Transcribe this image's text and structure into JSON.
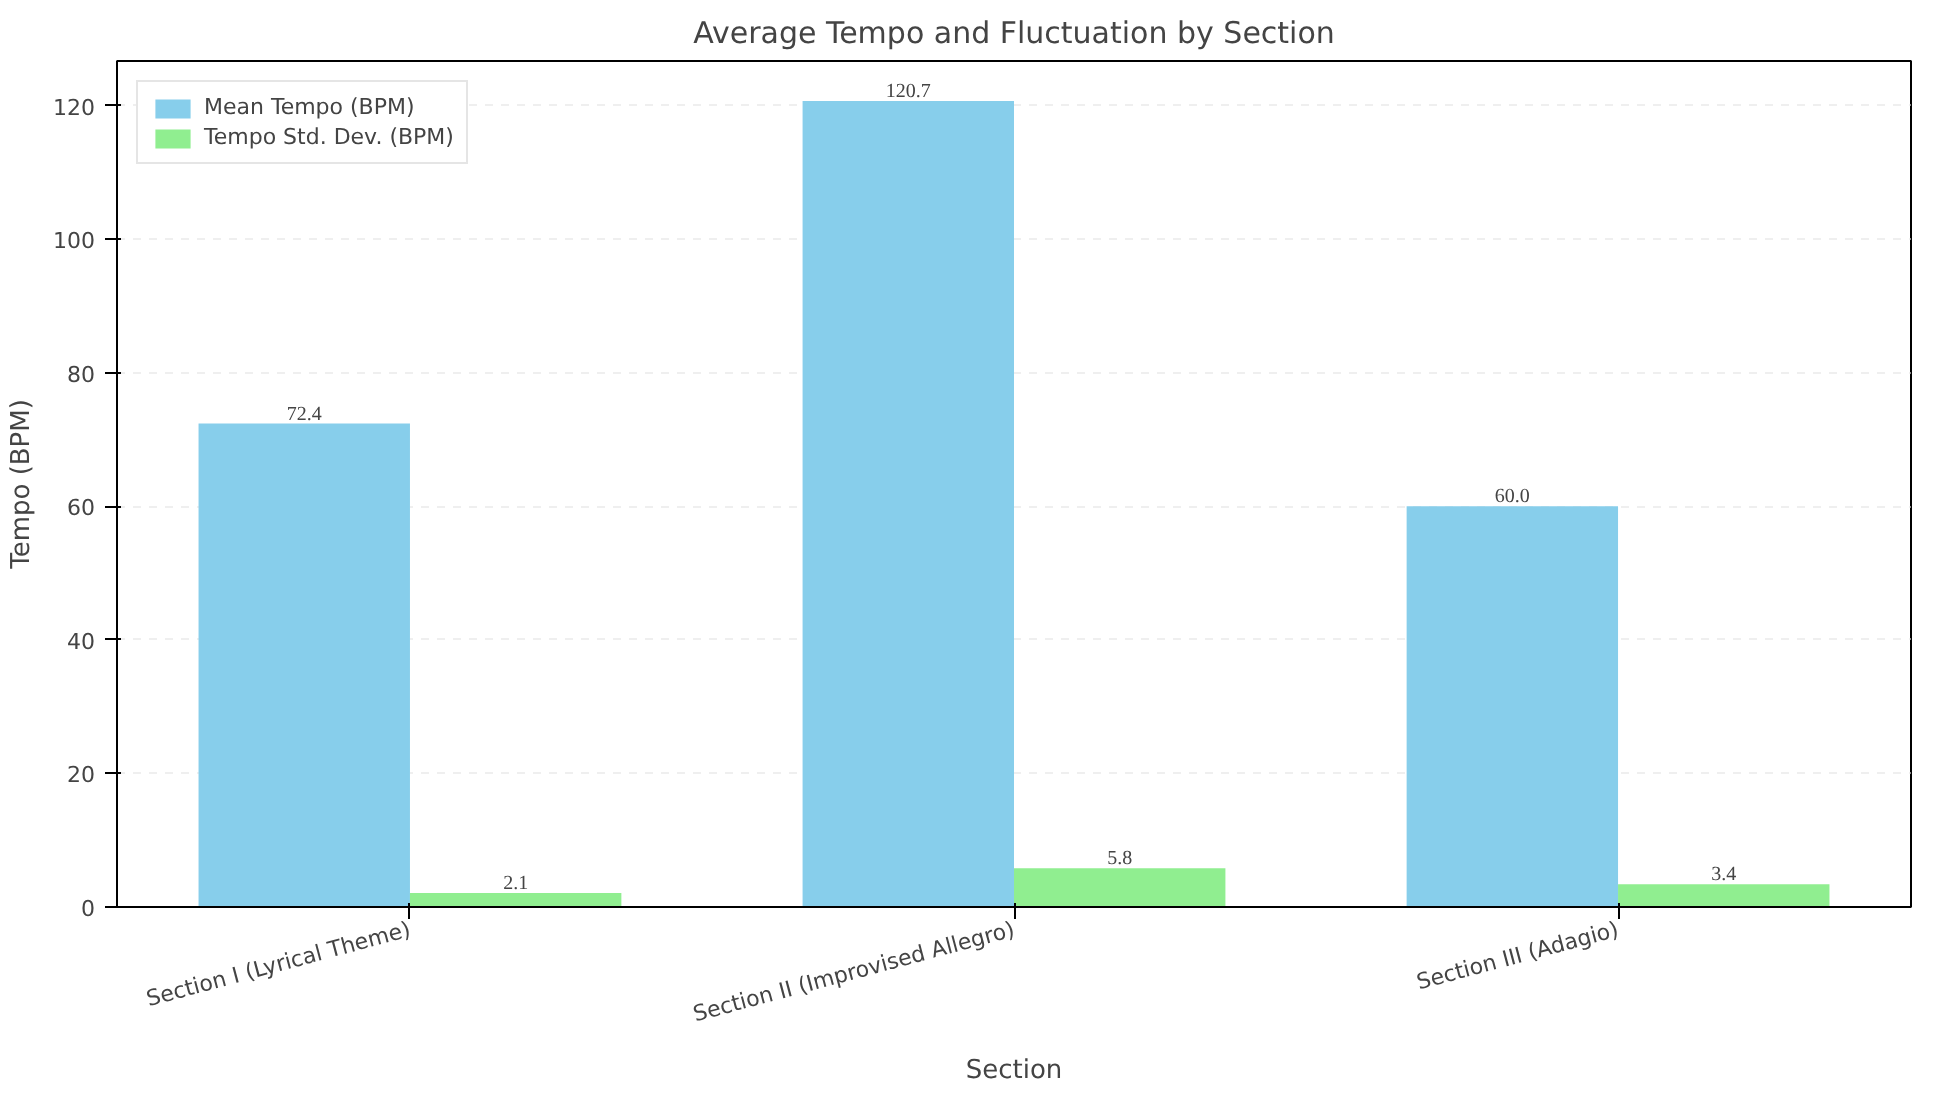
{
  "chart_data": {
    "type": "bar",
    "title": "Average Tempo and Fluctuation by Section",
    "xlabel": "Section",
    "ylabel": "Tempo (BPM)",
    "categories": [
      "Section I (Lyrical Theme)",
      "Section II (Improvised Allegro)",
      "Section III (Adagio)"
    ],
    "series": [
      {
        "name": "Mean Tempo (BPM)",
        "color": "#87ceeb",
        "values": [
          72.4,
          120.7,
          60.0
        ],
        "value_labels": [
          "72.4",
          "120.7",
          "60.0"
        ]
      },
      {
        "name": "Tempo Std. Dev. (BPM)",
        "color": "#90ee90",
        "values": [
          2.1,
          5.8,
          3.4
        ],
        "value_labels": [
          "2.1",
          "5.8",
          "3.4"
        ]
      }
    ],
    "ylim": [
      0,
      126.7
    ],
    "yticks": [
      0,
      20,
      40,
      60,
      80,
      100,
      120
    ],
    "grid": "y",
    "legend": "top left"
  }
}
